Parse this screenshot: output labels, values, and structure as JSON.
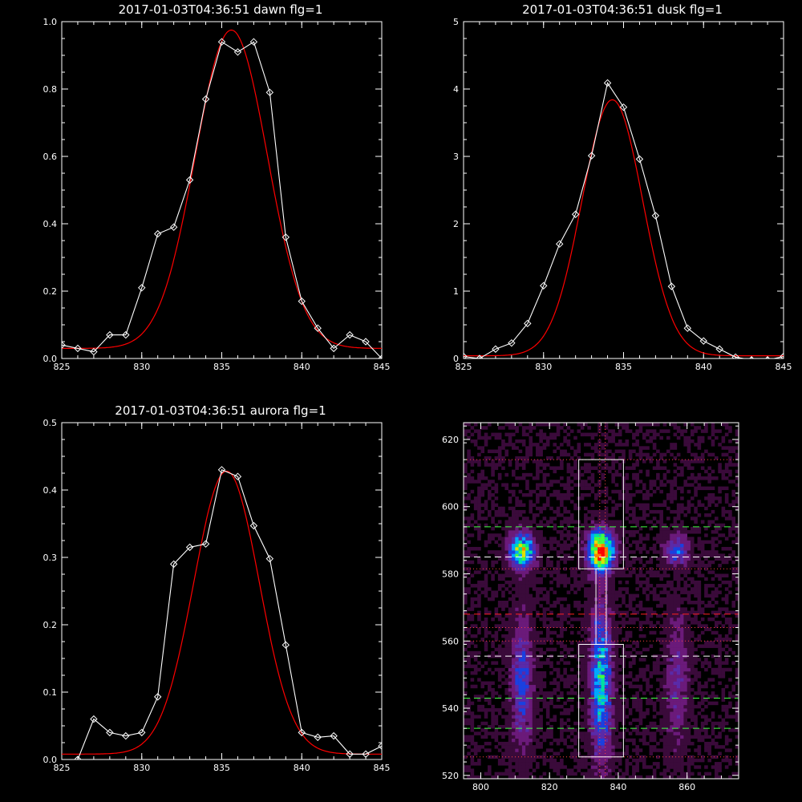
{
  "chart_data": [
    {
      "type": "line",
      "title": "2017-01-03T04:36:51 dawn flg=1",
      "xlim": [
        825,
        845
      ],
      "ylim": [
        0,
        1.0
      ],
      "xticks": [
        "825",
        "830",
        "835",
        "840",
        "845"
      ],
      "yticks": [
        "0.0",
        "0.2",
        "0.4",
        "0.6",
        "0.8",
        "1.0"
      ],
      "x": [
        825,
        826,
        827,
        828,
        829,
        830,
        831,
        832,
        833,
        834,
        835,
        836,
        837,
        838,
        839,
        840,
        841,
        842,
        843,
        844,
        845
      ],
      "series": [
        {
          "values": [
            0.04,
            0.03,
            0.02,
            0.07,
            0.07,
            0.21,
            0.37,
            0.39,
            0.53,
            0.77,
            0.94,
            0.91,
            0.94,
            0.79,
            0.36,
            0.17,
            0.09,
            0.03,
            0.07,
            0.05,
            0.0
          ],
          "color": "#ffffff"
        }
      ],
      "fit": {
        "amplitude": 0.945,
        "center": 835.6,
        "sigma": 2.25,
        "offset": 0.03,
        "color": "#ff0000"
      }
    },
    {
      "type": "line",
      "title": "2017-01-03T04:36:51 dusk flg=1",
      "xlim": [
        825,
        845
      ],
      "ylim": [
        0,
        5
      ],
      "xticks": [
        "825",
        "830",
        "835",
        "840",
        "845"
      ],
      "yticks": [
        "0",
        "1",
        "2",
        "3",
        "4",
        "5"
      ],
      "x": [
        825,
        826,
        827,
        828,
        829,
        830,
        831,
        832,
        833,
        834,
        835,
        836,
        837,
        838,
        839,
        840,
        841,
        842,
        843,
        844,
        845
      ],
      "series": [
        {
          "values": [
            0.03,
            0.0,
            0.14,
            0.23,
            0.52,
            1.08,
            1.7,
            2.14,
            3.01,
            4.09,
            3.73,
            2.96,
            2.12,
            1.07,
            0.45,
            0.26,
            0.14,
            0.02,
            -0.02,
            -0.02,
            0.03
          ],
          "color": "#ffffff"
        }
      ],
      "fit": {
        "amplitude": 3.8,
        "center": 834.3,
        "sigma": 1.9,
        "offset": 0.04,
        "color": "#ff0000"
      }
    },
    {
      "type": "line",
      "title": "2017-01-03T04:36:51 aurora flg=1",
      "xlim": [
        825,
        845
      ],
      "ylim": [
        0,
        0.5
      ],
      "xticks": [
        "825",
        "830",
        "835",
        "840",
        "845"
      ],
      "yticks": [
        "0.0",
        "0.1",
        "0.2",
        "0.3",
        "0.4",
        "0.5"
      ],
      "x": [
        826,
        827,
        828,
        829,
        830,
        831,
        832,
        833,
        834,
        835,
        836,
        837,
        838,
        839,
        840,
        841,
        842,
        843,
        844,
        845
      ],
      "series": [
        {
          "values": [
            0.0,
            0.06,
            0.04,
            0.035,
            0.04,
            0.093,
            0.29,
            0.315,
            0.32,
            0.43,
            0.42,
            0.347,
            0.298,
            0.17,
            0.04,
            0.033,
            0.035,
            0.008,
            0.008,
            0.02
          ],
          "color": "#ffffff"
        }
      ],
      "fit": {
        "amplitude": 0.42,
        "center": 835.3,
        "sigma": 2.05,
        "offset": 0.008,
        "color": "#ff0000"
      }
    },
    {
      "type": "heatmap",
      "title": "",
      "xlim": [
        795,
        875
      ],
      "ylim": [
        519,
        625
      ],
      "xticks": [
        "800",
        "820",
        "840",
        "860"
      ],
      "yticks": [
        "520",
        "540",
        "560",
        "580",
        "600",
        "620"
      ],
      "colormap": [
        "#000000",
        "#3a0a3a",
        "#6b1a7a",
        "#5a2aa8",
        "#1a40e0",
        "#00a8ff",
        "#00e0a0",
        "#40ff40",
        "#e0e000",
        "#ff8000",
        "#ff0000"
      ],
      "blobs": [
        {
          "x": 835,
          "y": 587,
          "sx": 2.5,
          "sy": 4,
          "peak": 1.0
        },
        {
          "x": 812,
          "y": 587,
          "sx": 2.5,
          "sy": 3.5,
          "peak": 0.7
        },
        {
          "x": 857,
          "y": 587,
          "sx": 2.5,
          "sy": 3,
          "peak": 0.35
        },
        {
          "x": 835,
          "y": 548,
          "sx": 2.2,
          "sy": 16,
          "peak": 0.5
        },
        {
          "x": 812,
          "y": 548,
          "sx": 2.2,
          "sy": 14,
          "peak": 0.32
        },
        {
          "x": 857,
          "y": 548,
          "sx": 2.2,
          "sy": 14,
          "peak": 0.22
        }
      ],
      "boxes": [
        {
          "x0": 828.5,
          "x1": 841.5,
          "y0": 581.5,
          "y1": 614,
          "color": "#ffffff"
        },
        {
          "x0": 828.5,
          "x1": 841.5,
          "y0": 525.5,
          "y1": 559,
          "color": "#ffffff"
        },
        {
          "x0": 833.5,
          "x1": 836.5,
          "y0": 559,
          "y1": 581.5,
          "color": "#ffffff"
        }
      ],
      "hlines": [
        {
          "y": 614,
          "color": "#ff4040",
          "style": "dotted"
        },
        {
          "y": 594,
          "color": "#40ff40",
          "style": "dashed"
        },
        {
          "y": 585,
          "color": "#ffffff",
          "style": "dashed"
        },
        {
          "y": 581.5,
          "color": "#ff4040",
          "style": "dotted"
        },
        {
          "y": 568,
          "color": "#ff2020",
          "style": "dashed"
        },
        {
          "y": 564,
          "color": "#ff4040",
          "style": "dotted"
        },
        {
          "y": 560,
          "color": "#ff4040",
          "style": "dotted"
        },
        {
          "y": 555.5,
          "color": "#ffffff",
          "style": "dashed"
        },
        {
          "y": 543,
          "color": "#40ff40",
          "style": "dashed"
        },
        {
          "y": 534,
          "color": "#40ff40",
          "style": "dashed"
        },
        {
          "y": 525.5,
          "color": "#ff4040",
          "style": "dotted"
        }
      ],
      "vlines": [
        {
          "x": 834.6,
          "color": "#ff4040",
          "style": "dotted"
        },
        {
          "x": 836.2,
          "color": "#ff4040",
          "style": "dotted"
        }
      ]
    }
  ]
}
